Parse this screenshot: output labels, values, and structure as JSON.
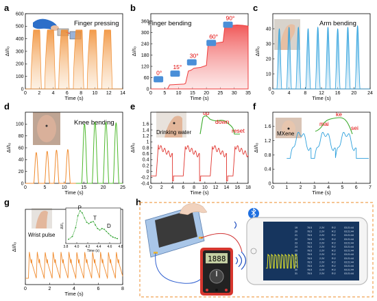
{
  "colors": {
    "a": "#f08a2c",
    "b": "#ee3b3b",
    "c": "#2a9fdc",
    "d_orange": "#f08a2c",
    "d_green": "#4cb82a",
    "e": "#e0302a",
    "e_inset": "#3aaa2a",
    "f": "#2a9fdc",
    "f_inset": "#3aaa2a",
    "g": "#f08a2c",
    "g_inset": "#2aa02a",
    "red_text": "#e00000",
    "dash_border": "#f0a050"
  },
  "chart_data": [
    {
      "id": "a",
      "type": "area",
      "panel_letter": "a",
      "title": "Finger pressing",
      "xlabel": "Time (s)",
      "ylabel": "ΔI/I₀",
      "xlim": [
        0,
        14
      ],
      "ylim": [
        0,
        600
      ],
      "xticks": [
        0,
        2,
        4,
        6,
        8,
        10,
        12,
        14
      ],
      "yticks": [
        0,
        100,
        200,
        300,
        400,
        500,
        600
      ],
      "pulse_starts": [
        0.8,
        2.8,
        4.8,
        6.9,
        8.9,
        11.0
      ],
      "pulse_width": 1.5,
      "peak": 470
    },
    {
      "id": "b",
      "type": "area",
      "panel_letter": "b",
      "title": "Finger bending",
      "xlabel": "Time (s)",
      "ylabel": "ΔI/I₀",
      "xlim": [
        0,
        35
      ],
      "ylim": [
        0,
        400
      ],
      "xticks": [
        0,
        5,
        10,
        15,
        20,
        25,
        30,
        35
      ],
      "yticks": [
        0,
        60,
        120,
        180,
        240,
        300,
        360
      ],
      "x": [
        0,
        6,
        6.8,
        12,
        12.5,
        13.5,
        14.5,
        15,
        15.5,
        18,
        20,
        20.6,
        21,
        24,
        26,
        26.6,
        27,
        31,
        33,
        35
      ],
      "y": [
        0,
        0,
        22,
        26,
        30,
        95,
        100,
        105,
        110,
        115,
        125,
        235,
        240,
        245,
        250,
        330,
        335,
        340,
        338,
        334
      ],
      "annotations": [
        "0°",
        "15°",
        "30°",
        "60°",
        "90°"
      ]
    },
    {
      "id": "c",
      "type": "area",
      "panel_letter": "c",
      "title": "Arm bending",
      "xlabel": "Time (s)",
      "ylabel": "ΔI/I₀",
      "xlim": [
        0,
        24
      ],
      "ylim": [
        0,
        50
      ],
      "xticks": [
        0,
        4,
        8,
        12,
        16,
        20,
        24
      ],
      "yticks": [
        0,
        10,
        20,
        30,
        40
      ],
      "peaks_x": [
        1.6,
        4.0,
        6.3,
        8.7,
        11.1,
        13.6,
        16.0,
        18.5,
        20.9
      ],
      "peaks_y": [
        40,
        41,
        41,
        40,
        41,
        41,
        40,
        41,
        42
      ],
      "pulse_width": 1.2
    },
    {
      "id": "d",
      "type": "line",
      "panel_letter": "d",
      "title": "Knee bending",
      "xlabel": "Time (s)",
      "ylabel": "ΔI/I₀",
      "xlim": [
        0,
        25
      ],
      "ylim": [
        0,
        120
      ],
      "xticks": [
        0,
        5,
        10,
        15,
        20,
        25
      ],
      "yticks": [
        0,
        20,
        40,
        60,
        80,
        100
      ],
      "series": [
        {
          "peaks_x": [
            2.8,
            5.6,
            8.0,
            10.9
          ],
          "peaks_y": [
            52,
            54,
            56,
            57
          ],
          "width": 1.3
        },
        {
          "peaks_x": [
            15.2,
            17.9,
            20.7,
            23.3
          ],
          "peaks_y": [
            100,
            103,
            103,
            102
          ],
          "width": 1.5
        }
      ]
    },
    {
      "id": "e",
      "type": "line",
      "panel_letter": "e",
      "xlabel": "Time (s)",
      "ylabel": "ΔI/I₀",
      "xlim": [
        0,
        18
      ],
      "ylim": [
        -0.4,
        2.0
      ],
      "xticks": [
        0,
        2,
        4,
        6,
        8,
        10,
        12,
        14,
        16,
        18
      ],
      "yticks": [
        -0.4,
        -0.2,
        0.0,
        0.2,
        0.4,
        0.6,
        0.8,
        1.0,
        1.2,
        1.4,
        1.6
      ],
      "cycle_starts": [
        1.0,
        6.0,
        11.0,
        15.2
      ],
      "inset_label": "Drinking water",
      "annotations": [
        "up",
        "down",
        "reset"
      ]
    },
    {
      "id": "f",
      "type": "line",
      "panel_letter": "f",
      "xlabel": "Time (s)",
      "ylabel": "ΔI/I₀",
      "xlim": [
        0,
        7
      ],
      "ylim": [
        0,
        2.0
      ],
      "xticks": [
        0,
        1,
        2,
        3,
        4,
        5,
        6,
        7
      ],
      "yticks": [
        0,
        0.4,
        0.8,
        1.2,
        1.6
      ],
      "cycle_starts": [
        1.25,
        3.0,
        4.5
      ],
      "inset_label": "MXene",
      "annotations": [
        "mai",
        "ke",
        "sei"
      ]
    },
    {
      "id": "g",
      "type": "line",
      "panel_letter": "g",
      "xlabel": "Time (s)",
      "ylabel": "ΔI/I₀",
      "xlim": [
        0,
        8
      ],
      "ylim": [
        0,
        1.2
      ],
      "xticks": [
        0,
        2,
        4,
        6,
        8
      ],
      "yticks": [],
      "beat_starts": [
        0.25,
        0.9,
        1.55,
        2.2,
        2.85,
        3.5,
        4.15,
        4.8,
        5.45,
        6.1,
        6.75,
        7.4
      ],
      "inset_label": "Wrist pulse",
      "inset": {
        "xlabel": "Time (s)",
        "ylabel": "ΔI/I₀",
        "xticks": [
          3.8,
          4.0,
          4.2,
          4.4,
          4.6,
          4.8
        ],
        "x": [
          3.85,
          3.92,
          3.98,
          4.02,
          4.06,
          4.1,
          4.14,
          4.18,
          4.22,
          4.26,
          4.3,
          4.34,
          4.38,
          4.42,
          4.46,
          4.5,
          4.54,
          4.58,
          4.62,
          4.66,
          4.7,
          4.74
        ],
        "y": [
          0.12,
          0.2,
          0.45,
          0.78,
          0.92,
          0.86,
          0.72,
          0.6,
          0.56,
          0.6,
          0.62,
          0.52,
          0.42,
          0.38,
          0.42,
          0.4,
          0.34,
          0.28,
          0.22,
          0.18,
          0.16,
          0.14
        ],
        "annotations": [
          "P",
          "T",
          "D"
        ]
      }
    }
  ],
  "panel_h": {
    "panel_letter": "h",
    "multimeter_display": "1888",
    "phone_rows": [
      [
        "19",
        "78.5",
        "2.2V",
        "R:2",
        "03:21:44"
      ],
      [
        "20",
        "78.5",
        "2.2V",
        "R:2",
        "03:21:44"
      ],
      [
        "21",
        "78.5",
        "2.2V",
        "R:2",
        "03:21:44"
      ],
      [
        "22",
        "78.5",
        "2.2V",
        "R:2",
        "03:21:44"
      ],
      [
        "23",
        "78.5",
        "2.2V",
        "R:2",
        "03:21:44"
      ],
      [
        "24",
        "78.5",
        "2.2V",
        "R:2",
        "03:21:44"
      ],
      [
        "25",
        "78.5",
        "2.2V",
        "R:2",
        "03:21:44"
      ],
      [
        "26",
        "78.5",
        "2.2V",
        "R:2",
        "03:21:44"
      ],
      [
        "27",
        "78.5",
        "2.2V",
        "R:2",
        "03:21:44"
      ],
      [
        "28",
        "78.5",
        "2.2V",
        "R:2",
        "03:21:44"
      ],
      [
        "29",
        "78.5",
        "2.2V",
        "R:2",
        "03:21:44"
      ],
      [
        "30",
        "78.5",
        "2.2V",
        "R:2",
        "03:21:44"
      ],
      [
        "31",
        "78.5",
        "2.2V",
        "R:2",
        "03:21:44"
      ]
    ]
  }
}
